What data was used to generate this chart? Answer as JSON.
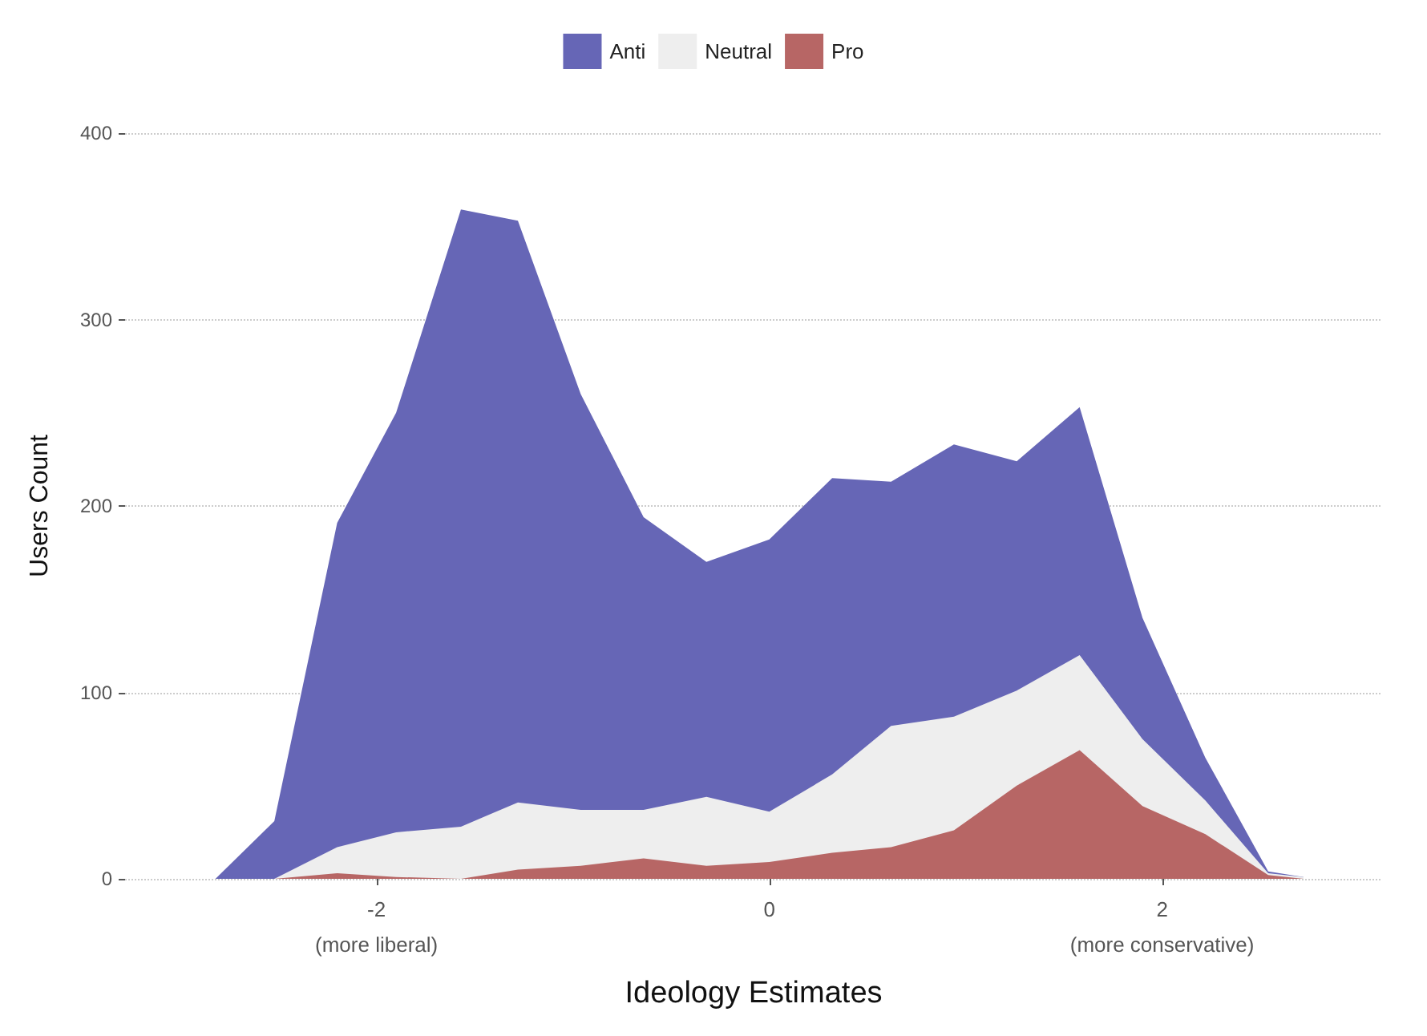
{
  "chart_data": {
    "type": "area",
    "stacked": true,
    "xlabel": "Ideology Estimates",
    "ylabel": "Users Count",
    "x": [
      -2.82,
      -2.52,
      -2.2,
      -1.9,
      -1.57,
      -1.28,
      -0.96,
      -0.64,
      -0.32,
      0,
      0.32,
      0.62,
      0.94,
      1.26,
      1.58,
      1.9,
      2.22,
      2.54,
      2.72
    ],
    "series": [
      {
        "name": "Pro",
        "color": "#b76665",
        "values": [
          0,
          0,
          3,
          1,
          0,
          5,
          7,
          11,
          7,
          9,
          14,
          17,
          26,
          50,
          69,
          39,
          24,
          2,
          0
        ]
      },
      {
        "name": "Neutral",
        "color": "#eeeeee",
        "values": [
          0,
          0,
          14,
          24,
          28,
          36,
          30,
          26,
          37,
          27,
          42,
          65,
          61,
          51,
          51,
          36,
          18,
          1,
          1
        ]
      },
      {
        "name": "Anti",
        "color": "#6666b6",
        "values": [
          0,
          31,
          174,
          225,
          331,
          312,
          223,
          157,
          126,
          146,
          159,
          131,
          146,
          123,
          133,
          65,
          23,
          1,
          0
        ]
      }
    ],
    "xlim": [
      -3.28,
      3.12
    ],
    "ylim": [
      0,
      400
    ],
    "xticks": [
      {
        "value": -2,
        "label": "-2\n(more liberal)"
      },
      0,
      {
        "value": 2,
        "label": "2\n(more conservative)"
      }
    ],
    "yticks": [
      0,
      100,
      200,
      300,
      400
    ],
    "grid": "y",
    "legend": "top"
  }
}
